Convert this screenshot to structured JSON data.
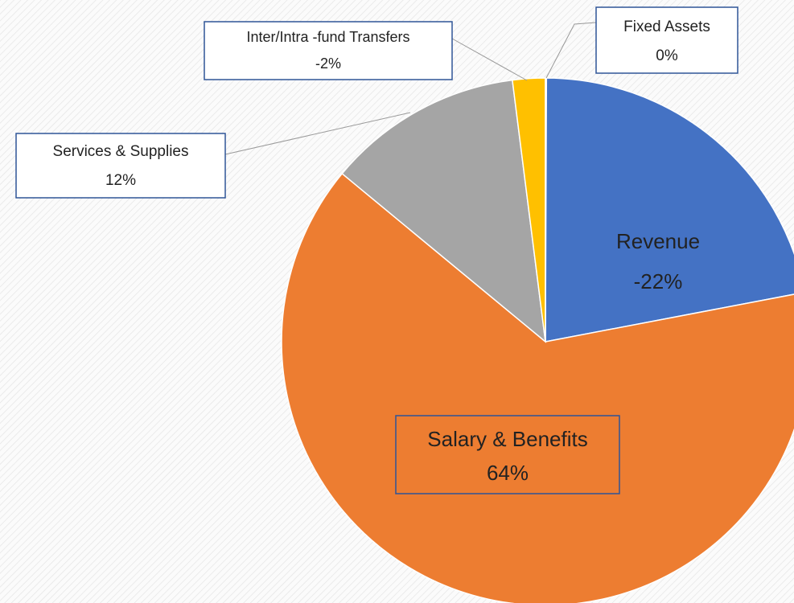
{
  "chart_data": {
    "type": "pie",
    "categories": [
      "Revenue",
      "Salary & Benefits",
      "Services & Supplies",
      "Inter/Intra -fund Transfers",
      "Fixed Assets"
    ],
    "values": [
      -22,
      64,
      12,
      -2,
      0
    ],
    "value_labels": [
      "-22%",
      "64%",
      "12%",
      "-2%",
      "0%"
    ],
    "colors": [
      "#4472c4",
      "#ed7d31",
      "#a5a5a5",
      "#ffc000",
      "#5b9bd5"
    ]
  }
}
